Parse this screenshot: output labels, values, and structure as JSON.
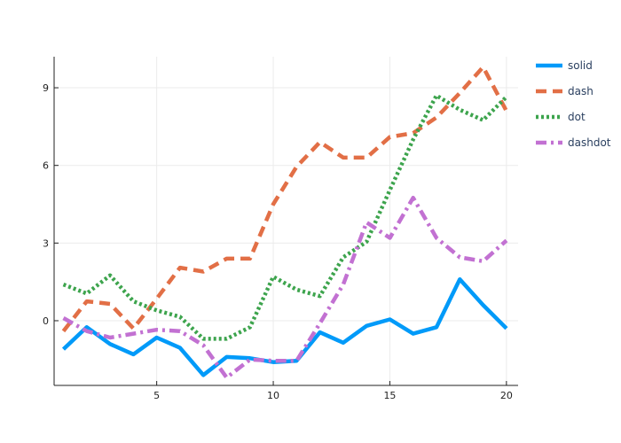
{
  "chart_data": {
    "type": "line",
    "title": "",
    "xlabel": "",
    "ylabel": "",
    "xlim": [
      0.6,
      20.5
    ],
    "ylim": [
      -2.5,
      10.2
    ],
    "xticks": [
      5,
      10,
      15,
      20
    ],
    "yticks": [
      0,
      3,
      6,
      9
    ],
    "grid": true,
    "legend_position": "top-right",
    "x": [
      1,
      2,
      3,
      4,
      5,
      6,
      7,
      8,
      9,
      10,
      11,
      12,
      13,
      14,
      15,
      16,
      17,
      18,
      19,
      20
    ],
    "series": [
      {
        "name": "solid",
        "style": "solid",
        "color": "#009af9",
        "values": [
          -1.1,
          -0.25,
          -0.9,
          -1.3,
          -0.65,
          -1.05,
          -2.1,
          -1.4,
          -1.45,
          -1.6,
          -1.55,
          -0.45,
          -0.85,
          -0.2,
          0.05,
          -0.5,
          -0.25,
          1.6,
          0.6,
          -0.3
        ]
      },
      {
        "name": "dash",
        "style": "dash",
        "color": "#e26f46",
        "values": [
          -0.4,
          0.75,
          0.65,
          -0.3,
          0.85,
          2.05,
          1.9,
          2.4,
          2.4,
          4.5,
          5.95,
          6.9,
          6.3,
          6.3,
          7.1,
          7.25,
          7.85,
          8.8,
          9.8,
          8.1
        ]
      },
      {
        "name": "dot",
        "style": "dot",
        "color": "#3da44d",
        "values": [
          1.4,
          1.05,
          1.75,
          0.75,
          0.4,
          0.15,
          -0.7,
          -0.7,
          -0.25,
          1.7,
          1.2,
          0.95,
          2.45,
          3.05,
          5.05,
          7.0,
          8.7,
          8.15,
          7.75,
          8.65
        ]
      },
      {
        "name": "dashdot",
        "style": "dashdot",
        "color": "#c271d2",
        "values": [
          0.1,
          -0.4,
          -0.65,
          -0.5,
          -0.35,
          -0.4,
          -0.95,
          -2.2,
          -1.5,
          -1.55,
          -1.55,
          -0.1,
          1.4,
          3.8,
          3.2,
          4.75,
          3.2,
          2.45,
          2.3,
          3.1
        ]
      }
    ]
  }
}
